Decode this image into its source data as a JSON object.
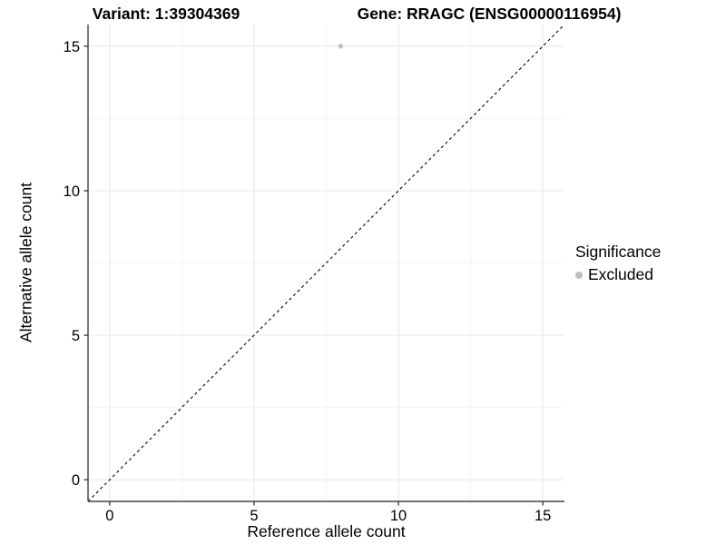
{
  "chart_data": {
    "type": "scatter",
    "title_left": "Variant: 1:39304369",
    "title_right": "Gene: RRAGC (ENSG00000116954)",
    "xlabel": "Reference allele count",
    "ylabel": "Alternative allele count",
    "xlim": [
      -0.75,
      15.75
    ],
    "ylim": [
      -0.75,
      15.75
    ],
    "x_ticks": [
      0,
      5,
      10,
      15
    ],
    "y_ticks": [
      0,
      5,
      10,
      15
    ],
    "x_minor_ticks": [
      2.5,
      7.5,
      12.5
    ],
    "y_minor_ticks": [
      2.5,
      7.5,
      12.5
    ],
    "grid": true,
    "points": [
      {
        "x": 8,
        "y": 15,
        "series": "Excluded"
      }
    ],
    "reference_line": {
      "kind": "identity y=x",
      "style": "dashed",
      "color": "#000000"
    },
    "legend": {
      "title": "Significance",
      "position": "right",
      "entries": [
        {
          "label": "Excluded",
          "color": "#bebebe",
          "marker": "circle"
        }
      ]
    },
    "colors": {
      "point": "#bebebe",
      "grid_major": "#e8e8e8",
      "grid_minor": "#f4f4f4",
      "axis": "#404040",
      "tick_mark": "#404040",
      "tick_text": "#000000",
      "background": "#ffffff"
    }
  }
}
